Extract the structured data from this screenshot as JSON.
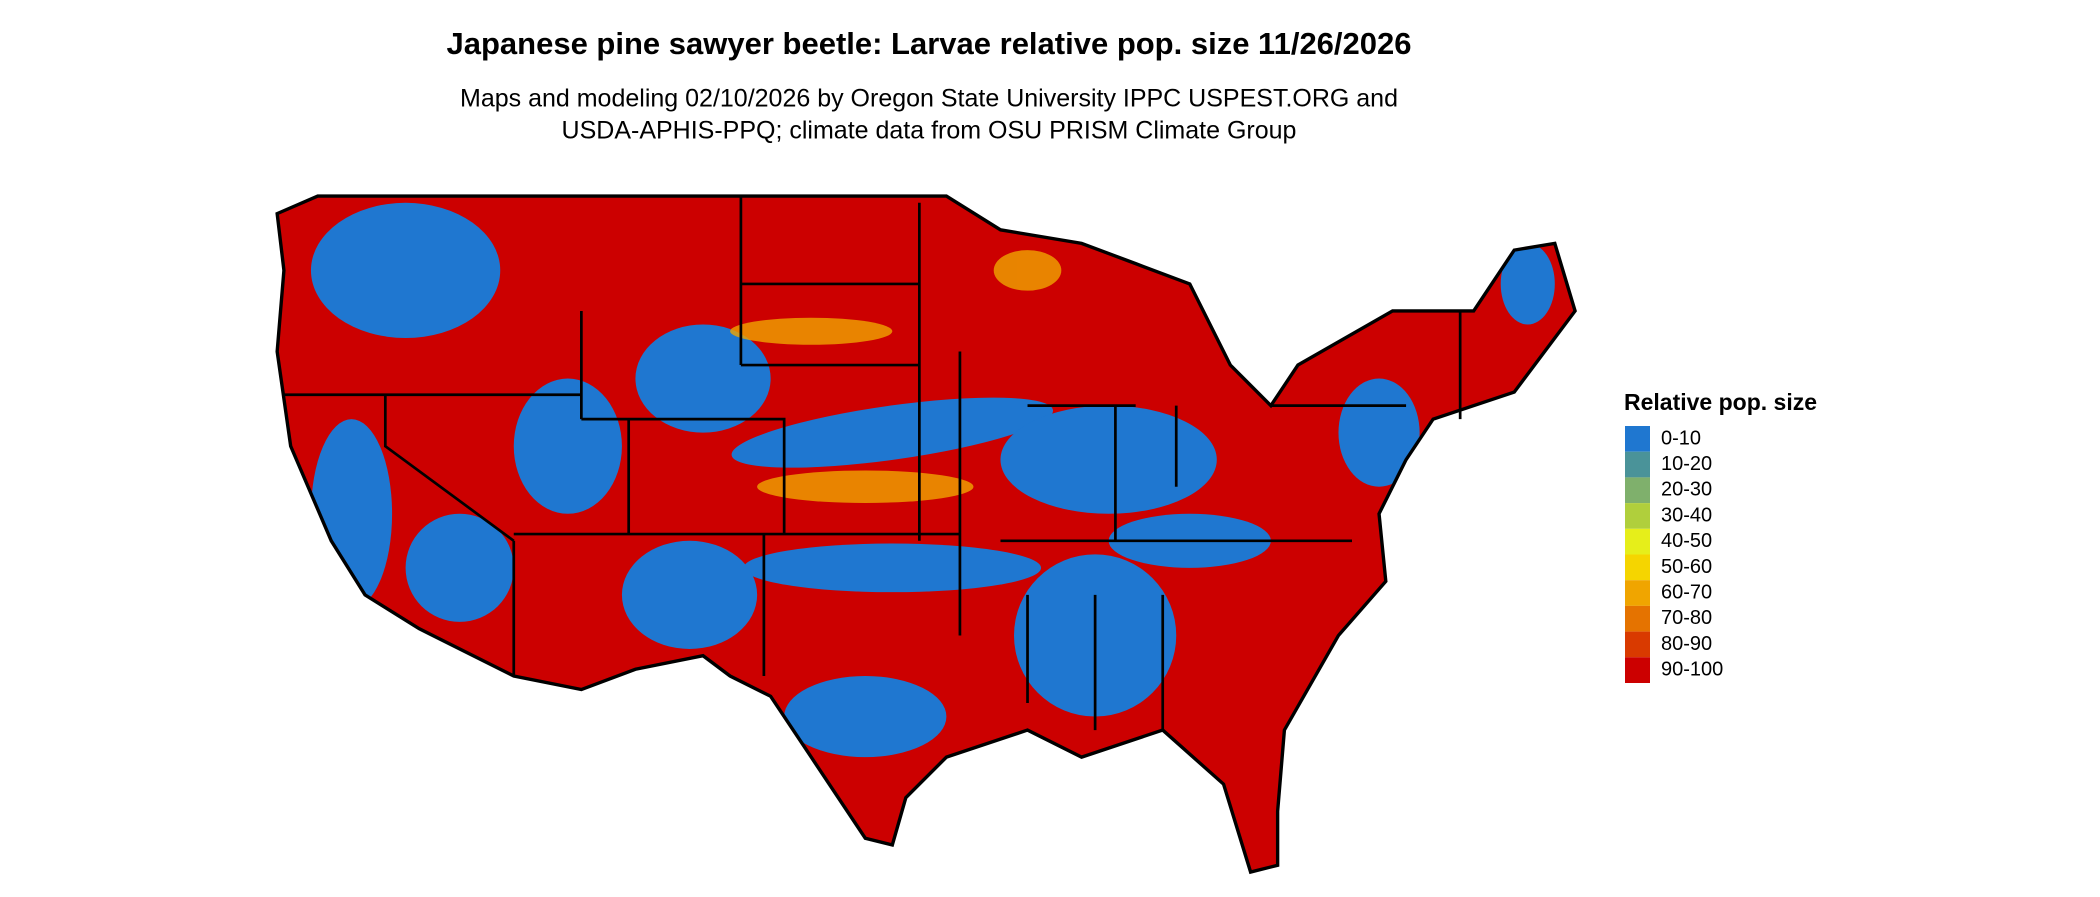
{
  "title": "Japanese pine sawyer beetle: Larvae relative pop. size 11/26/2026",
  "subtitle": [
    "Maps and modeling 02/10/2026 by Oregon State University IPPC USPEST.ORG and",
    "USDA-APHIS-PPQ; climate data from OSU PRISM Climate Group"
  ],
  "legend": {
    "title": "Relative pop. size",
    "items": [
      {
        "label": "0-10",
        "color": "#1f77d0"
      },
      {
        "label": "10-20",
        "color": "#4a9399"
      },
      {
        "label": "20-30",
        "color": "#7fb06c"
      },
      {
        "label": "30-40",
        "color": "#b0cf3c"
      },
      {
        "label": "40-50",
        "color": "#e6ee1a"
      },
      {
        "label": "50-60",
        "color": "#f5d500"
      },
      {
        "label": "60-70",
        "color": "#f0a500"
      },
      {
        "label": "70-80",
        "color": "#e57300"
      },
      {
        "label": "80-90",
        "color": "#d93a00"
      },
      {
        "label": "90-100",
        "color": "#cc0000"
      }
    ]
  }
}
